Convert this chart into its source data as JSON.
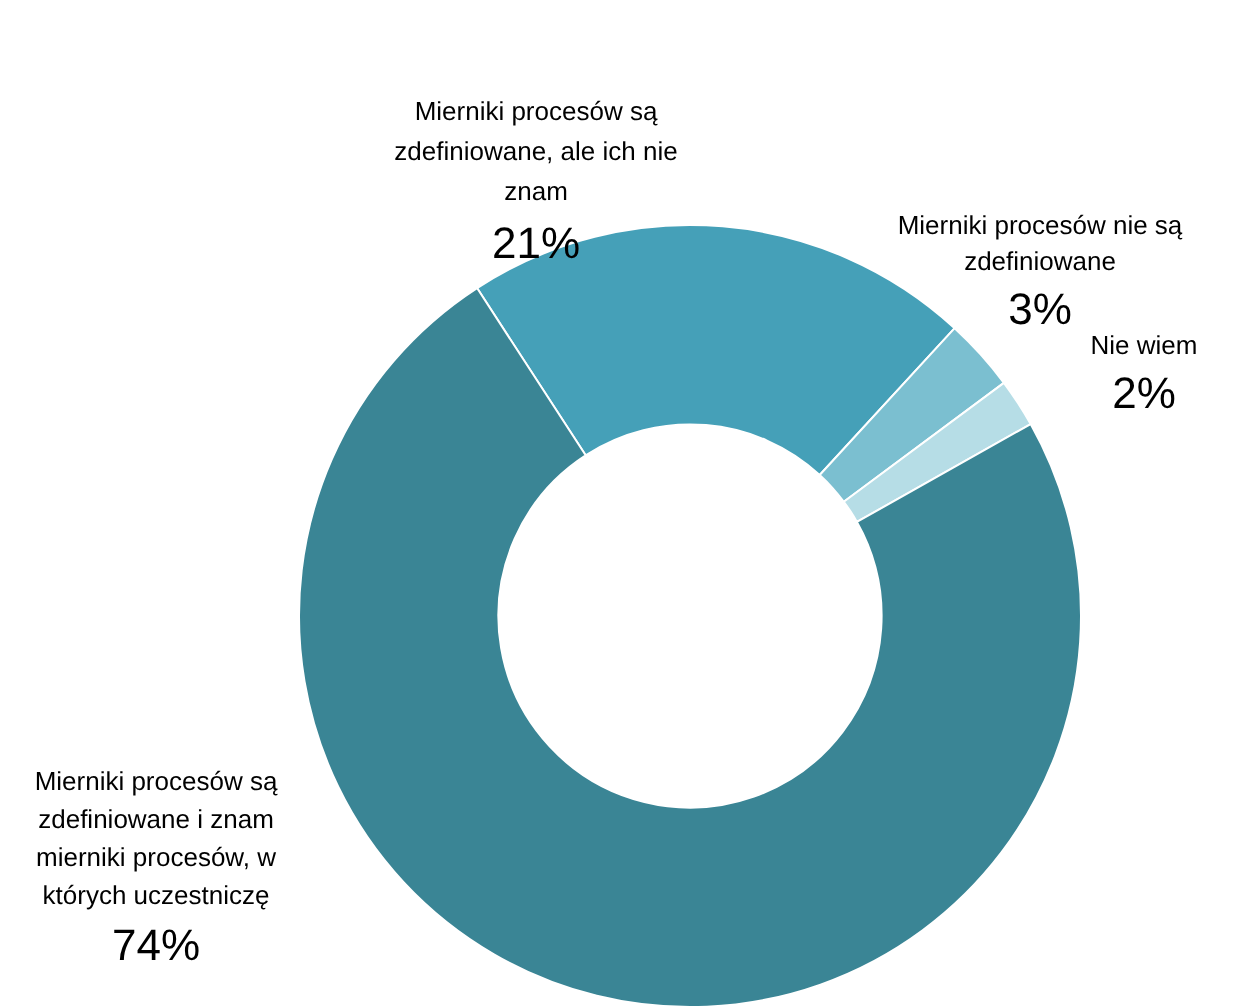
{
  "chart_data": {
    "type": "donut",
    "categories": [
      "Mierniki procesów są zdefiniowane, ale ich nie znam",
      "Mierniki procesów nie są zdefiniowane",
      "Nie wiem",
      "Mierniki procesów są zdefiniowane i znam mierniki procesów, w których uczestniczę"
    ],
    "values": [
      21,
      3,
      2,
      74
    ],
    "colors": [
      "#45a0b8",
      "#7bbfd0",
      "#b6dde6",
      "#3a8595"
    ],
    "value_labels": [
      "21%",
      "3%",
      "2%",
      "74%"
    ],
    "legend": false
  }
}
